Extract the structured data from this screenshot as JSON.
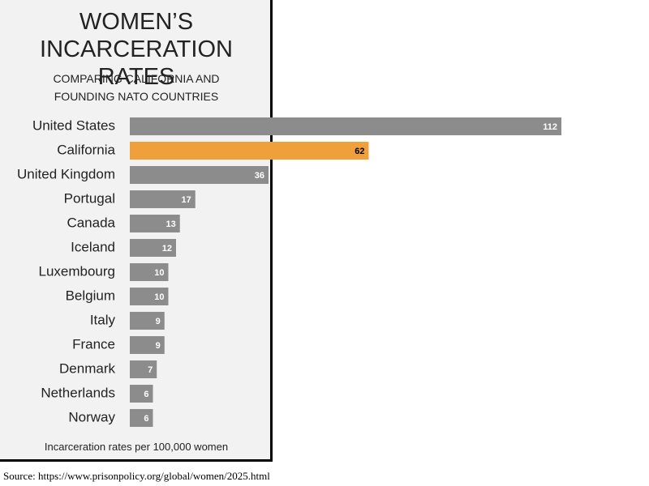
{
  "chart_data": {
    "type": "bar",
    "orientation": "horizontal",
    "title": "WOMEN’S INCARCERATION RATES",
    "subtitle": "COMPARING CALIFORNIA AND FOUNDING NATO COUNTRIES",
    "note": "Incarceration rates per 100,000 women",
    "source": "Source: https://www.prisonpolicy.org/global/women/2025.html",
    "categories": [
      "United States",
      "California",
      "United Kingdom",
      "Portugal",
      "Canada",
      "Iceland",
      "Luxembourg",
      "Belgium",
      "Italy",
      "France",
      "Denmark",
      "Netherlands",
      "Norway"
    ],
    "values": [
      112,
      62,
      36,
      17,
      13,
      12,
      10,
      10,
      9,
      9,
      7,
      6,
      6
    ],
    "colors": [
      "#8c8c8c",
      "#f0a03a",
      "#8c8c8c",
      "#8c8c8c",
      "#8c8c8c",
      "#8c8c8c",
      "#8c8c8c",
      "#8c8c8c",
      "#8c8c8c",
      "#8c8c8c",
      "#8c8c8c",
      "#8c8c8c",
      "#8c8c8c"
    ],
    "value_label_colors": [
      "#ffffff",
      "#000000",
      "#ffffff",
      "#ffffff",
      "#ffffff",
      "#ffffff",
      "#ffffff",
      "#ffffff",
      "#ffffff",
      "#ffffff",
      "#ffffff",
      "#ffffff",
      "#ffffff"
    ]
  }
}
